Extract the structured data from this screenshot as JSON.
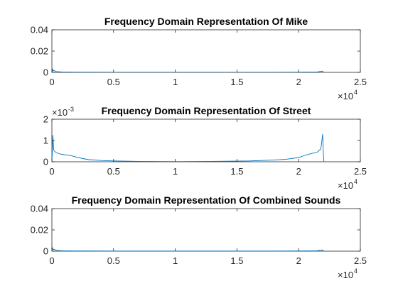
{
  "chart_data": [
    {
      "type": "line",
      "title": "Frequency Domain Representation Of Mike",
      "xlabel": "",
      "ylabel": "",
      "xlim": [
        0,
        25000
      ],
      "ylim": [
        0,
        0.04
      ],
      "x_ticks": [
        0,
        5000,
        10000,
        15000,
        20000,
        25000
      ],
      "x_tick_labels": [
        "0",
        "0.5",
        "1",
        "1.5",
        "2",
        "2.5"
      ],
      "x_exponent_label": "×10",
      "x_exponent": "4",
      "y_ticks": [
        0,
        0.02,
        0.04
      ],
      "y_tick_labels": [
        "0",
        "0.02",
        "0.04"
      ],
      "y_exponent_label": "",
      "y_exponent": "",
      "grid": false,
      "color": "#0072BD",
      "series": [
        {
          "x": [
            0,
            50,
            100,
            200,
            300,
            500,
            800,
            1200,
            2000,
            5000,
            10000,
            15000,
            20000,
            21500,
            21900,
            22000,
            22050
          ],
          "y": [
            0,
            0.0035,
            0.0012,
            0.0018,
            0.0008,
            0.0006,
            0.0004,
            0.0003,
            0.0002,
            0.0001,
            0.0001,
            0.0001,
            0.0002,
            0.0004,
            0.0011,
            0.0006,
            0
          ]
        }
      ]
    },
    {
      "type": "line",
      "title": "Frequency Domain Representation Of Street",
      "xlabel": "",
      "ylabel": "",
      "xlim": [
        0,
        25000
      ],
      "ylim": [
        0,
        2
      ],
      "x_ticks": [
        0,
        5000,
        10000,
        15000,
        20000,
        25000
      ],
      "x_tick_labels": [
        "0",
        "0.5",
        "1",
        "1.5",
        "2",
        "2.5"
      ],
      "x_exponent_label": "×10",
      "x_exponent": "4",
      "y_ticks": [
        0,
        1,
        2
      ],
      "y_tick_labels": [
        "0",
        "1",
        "2"
      ],
      "y_exponent_label": "×10",
      "y_exponent": "-3",
      "grid": false,
      "color": "#0072BD",
      "series": [
        {
          "x": [
            0,
            80,
            150,
            300,
            500,
            800,
            1200,
            1600,
            2000,
            2500,
            3000,
            4000,
            5000,
            7000,
            10000,
            13000,
            16000,
            18000,
            19000,
            20000,
            20500,
            21000,
            21500,
            21800,
            21950,
            22000,
            22050
          ],
          "y": [
            0,
            1.25,
            0.55,
            0.45,
            0.4,
            0.35,
            0.32,
            0.28,
            0.22,
            0.15,
            0.1,
            0.06,
            0.04,
            0.02,
            0.01,
            0.02,
            0.04,
            0.08,
            0.12,
            0.2,
            0.3,
            0.38,
            0.45,
            0.6,
            1.3,
            0.4,
            0
          ]
        }
      ]
    },
    {
      "type": "line",
      "title": "Frequency Domain Representation Of Combined Sounds",
      "xlabel": "",
      "ylabel": "",
      "xlim": [
        0,
        25000
      ],
      "ylim": [
        0,
        0.04
      ],
      "x_ticks": [
        0,
        5000,
        10000,
        15000,
        20000,
        25000
      ],
      "x_tick_labels": [
        "0",
        "0.5",
        "1",
        "1.5",
        "2",
        "2.5"
      ],
      "x_exponent_label": "×10",
      "x_exponent": "4",
      "y_ticks": [
        0,
        0.02,
        0.04
      ],
      "y_tick_labels": [
        "0",
        "0.02",
        "0.04"
      ],
      "y_exponent_label": "",
      "y_exponent": "",
      "grid": false,
      "color": "#0072BD",
      "series": [
        {
          "x": [
            0,
            50,
            100,
            200,
            300,
            500,
            800,
            1200,
            2000,
            5000,
            10000,
            15000,
            20000,
            21500,
            21900,
            22000,
            22050
          ],
          "y": [
            0,
            0.0035,
            0.0013,
            0.0018,
            0.0009,
            0.0006,
            0.0004,
            0.0003,
            0.0002,
            0.0001,
            0.0001,
            0.0001,
            0.0002,
            0.0004,
            0.0012,
            0.0006,
            0
          ]
        }
      ]
    }
  ]
}
